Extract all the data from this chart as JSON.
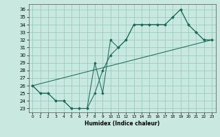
{
  "background_color": "#c8e8e0",
  "grid_color": "#99ccbb",
  "line_color": "#1a6b5a",
  "xlim": [
    -0.5,
    23.5
  ],
  "ylim": [
    22.5,
    36.7
  ],
  "xticks": [
    0,
    1,
    2,
    3,
    4,
    5,
    6,
    7,
    8,
    9,
    10,
    11,
    12,
    13,
    14,
    15,
    16,
    17,
    18,
    19,
    20,
    21,
    22,
    23
  ],
  "yticks": [
    23,
    24,
    25,
    26,
    27,
    28,
    29,
    30,
    31,
    32,
    33,
    34,
    35,
    36
  ],
  "xlabel": "Humidex (Indice chaleur)",
  "line1_x": [
    0,
    1,
    2,
    3,
    4,
    5,
    6,
    7,
    8,
    9,
    10,
    11,
    12,
    13,
    14,
    15,
    16,
    17,
    18,
    19,
    20,
    21,
    22,
    23
  ],
  "line1_y": [
    26,
    25,
    25,
    24,
    24,
    23,
    23,
    23,
    25,
    28,
    30,
    31,
    32,
    34,
    34,
    34,
    34,
    34,
    35,
    36,
    34,
    33,
    32,
    32
  ],
  "line2_x": [
    0,
    1,
    2,
    3,
    4,
    5,
    6,
    7,
    8,
    9,
    10,
    11,
    12,
    13,
    14,
    15,
    16,
    17,
    18,
    19,
    20,
    21,
    22,
    23
  ],
  "line2_y": [
    26,
    25,
    25,
    24,
    24,
    23,
    23,
    23,
    29,
    25,
    32,
    31,
    32,
    34,
    34,
    34,
    34,
    34,
    35,
    36,
    34,
    33,
    32,
    32
  ],
  "line3_x": [
    0,
    23
  ],
  "line3_y": [
    26,
    32
  ]
}
